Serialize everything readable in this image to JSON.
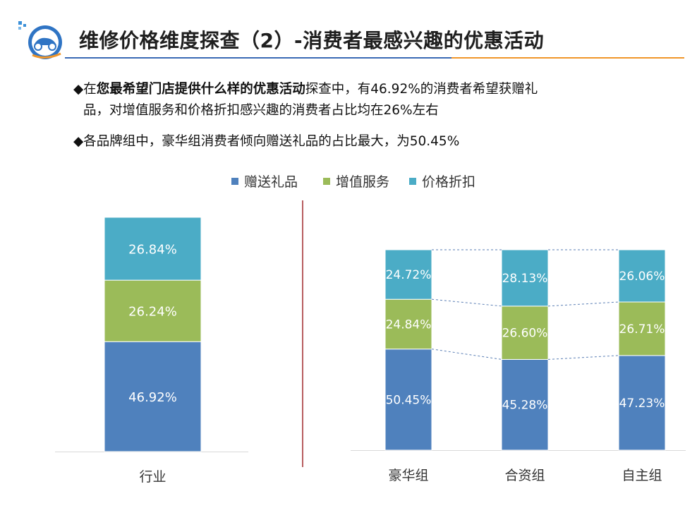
{
  "header": {
    "title": "维修价格维度探查（2）-消费者最感兴趣的优惠活动"
  },
  "bullets": {
    "b1_prefix": "◆在",
    "b1_bold": "您最希望门店提供什么样的优惠活动",
    "b1_suffix": "探查中，有46.92%的消费者希望获赠礼",
    "b1_line2": "品，对增值服务和价格折扣感兴趣的消费者占比均在26%左右",
    "b2": "◆各品牌组中，豪华组消费者倾向赠送礼品的占比最大，为50.45%"
  },
  "colors": {
    "gift": "#4f81bd",
    "value_added": "#9bbb59",
    "discount": "#4bacc6",
    "divider": "#a0282b",
    "accent_blue": "#3a6ab5",
    "accent_orange": "#f0962a"
  },
  "chart_data": [
    {
      "type": "bar",
      "stacked": true,
      "categories": [
        "行业"
      ],
      "series": [
        {
          "name": "赠送礼品",
          "values": [
            46.92
          ],
          "labels": [
            "46.92%"
          ]
        },
        {
          "name": "增值服务",
          "values": [
            26.24
          ],
          "labels": [
            "26.24%"
          ]
        },
        {
          "name": "价格折扣",
          "values": [
            26.84
          ],
          "labels": [
            "26.84%"
          ]
        }
      ],
      "ylim": [
        0,
        100
      ],
      "legend": "top"
    },
    {
      "type": "bar",
      "stacked": true,
      "categories": [
        "豪华组",
        "合资组",
        "自主组"
      ],
      "series": [
        {
          "name": "赠送礼品",
          "values": [
            50.45,
            45.28,
            47.23
          ],
          "labels": [
            "50.45%",
            "45.28%",
            "47.23%"
          ]
        },
        {
          "name": "增值服务",
          "values": [
            24.84,
            26.6,
            26.71
          ],
          "labels": [
            "24.84%",
            "26.60%",
            "26.71%"
          ]
        },
        {
          "name": "价格折扣",
          "values": [
            24.72,
            28.13,
            26.06
          ],
          "labels": [
            "24.72%",
            "28.13%",
            "26.06%"
          ]
        }
      ],
      "ylim": [
        0,
        100
      ],
      "series_lines": true
    }
  ]
}
